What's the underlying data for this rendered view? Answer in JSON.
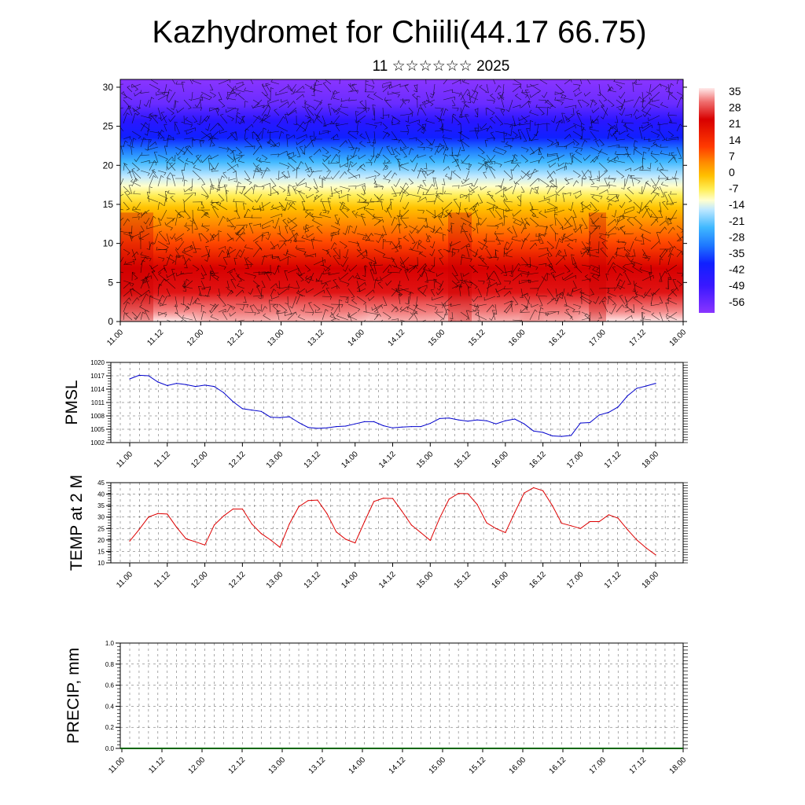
{
  "title": "Kazhydromet for Chiili(44.17 66.75)",
  "subtitle": "11 ☆☆☆☆☆☆ 2025",
  "chart_data": [
    {
      "type": "heatmap",
      "panel": "cross-section",
      "x_tick_labels": [
        "11.00",
        "11.12",
        "12.00",
        "12.12",
        "13.00",
        "13.12",
        "14.00",
        "14.12",
        "15.00",
        "15.12",
        "16.00",
        "16.12",
        "17.00",
        "17.12",
        "18.00"
      ],
      "y_ticks": [
        0,
        5,
        10,
        15,
        20,
        25,
        30
      ],
      "ylim": [
        0,
        31
      ],
      "colorbar_labels": [
        "35",
        "28",
        "21",
        "14",
        "7",
        "0",
        "-7",
        "-14",
        "-21",
        "-28",
        "-35",
        "-42",
        "-49",
        "-56"
      ],
      "colors": {
        "max": "#ffffff",
        "warm": "#d80000",
        "mid": "#ffee55",
        "cold_light": "#bfe8ff",
        "cold": "#1020ff",
        "min": "#8a35ff"
      },
      "overlay": "wind barbs"
    },
    {
      "type": "line",
      "ylabel": "PMSL",
      "x_tick_labels": [
        "11.00",
        "11.12",
        "12.00",
        "12.12",
        "13.00",
        "13.12",
        "14.00",
        "14.12",
        "15.00",
        "15.12",
        "16.00",
        "16.12",
        "17.00",
        "17.12",
        "18.00"
      ],
      "y_ticks": [
        1002,
        1005,
        1008,
        1011,
        1014,
        1017,
        1020
      ],
      "ylim": [
        1002,
        1020
      ],
      "color": "#0000cc",
      "values": [
        1016.3,
        1017.1,
        1017.0,
        1015.6,
        1014.8,
        1015.3,
        1015.0,
        1014.6,
        1014.9,
        1014.6,
        1013.2,
        1011.2,
        1009.6,
        1009.3,
        1009.0,
        1007.7,
        1007.6,
        1007.8,
        1006.5,
        1005.4,
        1005.2,
        1005.3,
        1005.6,
        1005.7,
        1006.2,
        1006.7,
        1006.7,
        1005.8,
        1005.3,
        1005.5,
        1005.6,
        1005.6,
        1006.3,
        1007.4,
        1007.5,
        1007.1,
        1006.8,
        1007.1,
        1006.9,
        1006.2,
        1006.9,
        1007.3,
        1006.2,
        1004.6,
        1004.3,
        1003.5,
        1003.4,
        1003.6,
        1006.4,
        1006.5,
        1008.2,
        1008.8,
        1010.0,
        1012.5,
        1014.2,
        1014.7,
        1015.3
      ]
    },
    {
      "type": "line",
      "ylabel": "TEMP at 2 M",
      "x_tick_labels": [
        "11.00",
        "11.12",
        "12.00",
        "12.12",
        "13.00",
        "13.12",
        "14.00",
        "14.12",
        "15.00",
        "15.12",
        "16.00",
        "16.12",
        "17.00",
        "17.12",
        "18.00"
      ],
      "y_ticks": [
        10,
        15,
        20,
        25,
        30,
        35,
        40,
        45
      ],
      "ylim": [
        10,
        45
      ],
      "color": "#dd0000",
      "values": [
        19.5,
        24.5,
        30.0,
        31.5,
        31.3,
        25.5,
        20.5,
        19.2,
        17.8,
        26.5,
        30.5,
        33.5,
        33.5,
        27.0,
        22.8,
        20.0,
        16.8,
        27.0,
        34.5,
        37.2,
        37.4,
        31.5,
        23.5,
        20.3,
        18.7,
        28.0,
        36.8,
        38.2,
        38.1,
        32.5,
        26.5,
        23.2,
        19.8,
        29.5,
        37.8,
        40.3,
        40.2,
        35.5,
        27.5,
        25.0,
        23.2,
        32.0,
        40.5,
        42.8,
        41.5,
        35.0,
        27.3,
        26.2,
        25.0,
        28.0,
        28.0,
        31.0,
        29.5,
        24.5,
        20.0,
        16.5,
        13.5
      ]
    },
    {
      "type": "line",
      "ylabel": "PRECIP, mm",
      "x_tick_labels": [
        "11.00",
        "11.12",
        "12.00",
        "12.12",
        "13.00",
        "13.12",
        "14.00",
        "14.12",
        "15.00",
        "15.12",
        "16.00",
        "16.12",
        "17.00",
        "17.12",
        "18.00"
      ],
      "y_ticks": [
        "0.0",
        "0.2",
        "0.4",
        "0.6",
        "0.8",
        "1.0"
      ],
      "ylim": [
        0,
        1.0
      ],
      "color": "#006600",
      "values": [
        0,
        0
      ]
    }
  ]
}
